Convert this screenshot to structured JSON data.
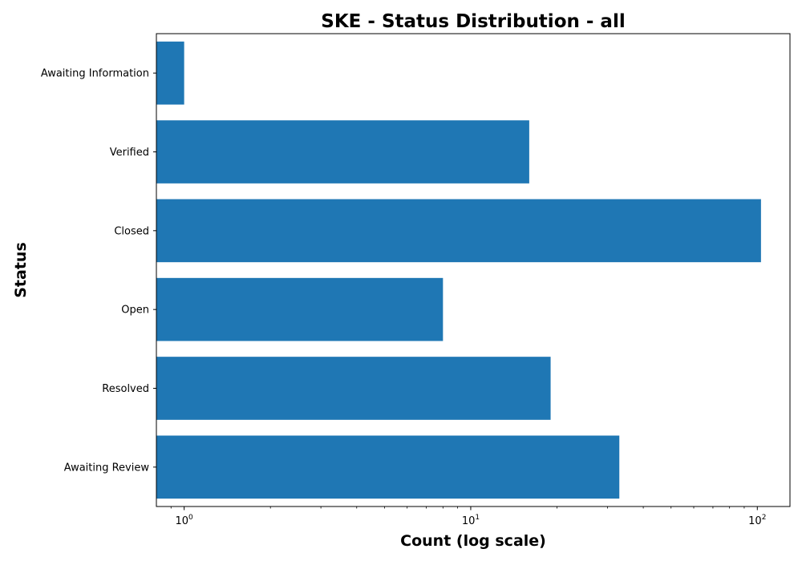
{
  "chart_data": {
    "type": "bar",
    "orientation": "horizontal",
    "title": "SKE - Status Distribution - all",
    "xlabel": "Count (log scale)",
    "ylabel": "Status",
    "x_scale": "log",
    "xlim": [
      0.8,
      130
    ],
    "x_ticks": [
      {
        "value": 1,
        "base": "10",
        "exponent": "0"
      },
      {
        "value": 10,
        "base": "10",
        "exponent": "1"
      },
      {
        "value": 100,
        "base": "10",
        "exponent": "2"
      }
    ],
    "categories": [
      "Awaiting Information",
      "Verified",
      "Closed",
      "Open",
      "Resolved",
      "Awaiting Review"
    ],
    "values": [
      1,
      16,
      103,
      8,
      19,
      33
    ],
    "bar_color": "#1f77b4",
    "grid": false,
    "legend": false
  }
}
